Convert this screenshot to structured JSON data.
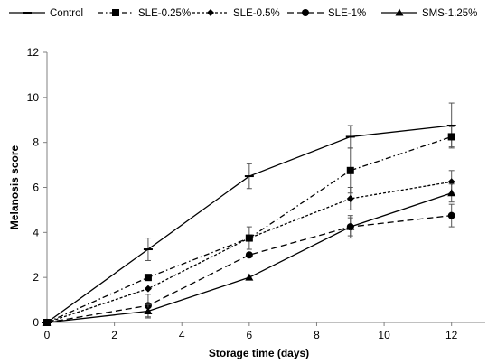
{
  "chart_data": {
    "type": "line",
    "title": "",
    "xlabel": "Storage time (days)",
    "ylabel": "Melanosis score",
    "xlim": [
      0,
      13
    ],
    "ylim": [
      0,
      12
    ],
    "xticks": [
      0,
      2,
      4,
      6,
      8,
      10,
      12
    ],
    "yticks": [
      0,
      2,
      4,
      6,
      8,
      10,
      12
    ],
    "grid": false,
    "legend_position": "top",
    "x": [
      0,
      3,
      6,
      9,
      12
    ],
    "series": [
      {
        "name": "Control",
        "marker": "dash",
        "line": "solid",
        "values": [
          0,
          3.25,
          6.5,
          8.25,
          8.75
        ],
        "errors": [
          0,
          0.5,
          0.55,
          0.5,
          1.0
        ]
      },
      {
        "name": "SLE-0.25%",
        "marker": "square",
        "line": "dashdot",
        "values": [
          0,
          2.0,
          3.75,
          6.75,
          8.25
        ],
        "errors": [
          0,
          0,
          0.5,
          1.0,
          0.45
        ]
      },
      {
        "name": "SLE-0.5%",
        "marker": "diamond",
        "line": "dotted",
        "values": [
          0,
          1.5,
          3.75,
          5.5,
          6.25
        ],
        "errors": [
          0,
          0,
          0,
          0.5,
          0.5
        ]
      },
      {
        "name": "SLE-1%",
        "marker": "circle",
        "line": "dashed",
        "values": [
          0,
          0.75,
          3.0,
          4.25,
          4.75
        ],
        "errors": [
          0,
          0.5,
          0,
          0.5,
          0.5
        ]
      },
      {
        "name": "SMS-1.25%",
        "marker": "triangle",
        "line": "solid",
        "values": [
          0,
          0.5,
          2.0,
          4.25,
          5.75
        ],
        "errors": [
          0,
          0.3,
          0,
          0.4,
          0.4
        ]
      }
    ],
    "colors": {
      "line": "#000000",
      "axis": "#808080"
    }
  }
}
